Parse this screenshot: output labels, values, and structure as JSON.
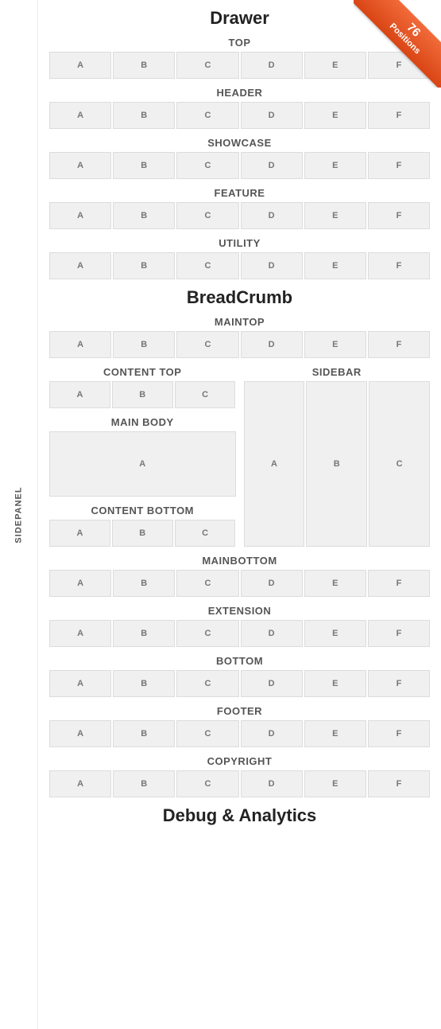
{
  "ribbon": {
    "number": "76",
    "label": "Positions"
  },
  "sidepanel": {
    "label": "SIDEPANEL"
  },
  "headings": {
    "drawer": "Drawer",
    "breadcrumb": "BreadCrumb",
    "debug": "Debug & Analytics"
  },
  "sections_top": [
    {
      "title": "TOP",
      "cells": [
        "A",
        "B",
        "C",
        "D",
        "E",
        "F"
      ]
    },
    {
      "title": "HEADER",
      "cells": [
        "A",
        "B",
        "C",
        "D",
        "E",
        "F"
      ]
    },
    {
      "title": "SHOWCASE",
      "cells": [
        "A",
        "B",
        "C",
        "D",
        "E",
        "F"
      ]
    },
    {
      "title": "FEATURE",
      "cells": [
        "A",
        "B",
        "C",
        "D",
        "E",
        "F"
      ]
    },
    {
      "title": "UTILITY",
      "cells": [
        "A",
        "B",
        "C",
        "D",
        "E",
        "F"
      ]
    }
  ],
  "maintop": {
    "title": "MAINTOP",
    "cells": [
      "A",
      "B",
      "C",
      "D",
      "E",
      "F"
    ]
  },
  "content_top": {
    "title": "CONTENT TOP",
    "cells": [
      "A",
      "B",
      "C"
    ]
  },
  "sidebar": {
    "title": "SIDEBAR",
    "cells": [
      "A",
      "B",
      "C"
    ]
  },
  "mainbody": {
    "title": "MAIN BODY",
    "cell": "A"
  },
  "content_bottom": {
    "title": "CONTENT BOTTOM",
    "cells": [
      "A",
      "B",
      "C"
    ]
  },
  "sections_bottom": [
    {
      "title": "MAINBOTTOM",
      "cells": [
        "A",
        "B",
        "C",
        "D",
        "E",
        "F"
      ]
    },
    {
      "title": "EXTENSION",
      "cells": [
        "A",
        "B",
        "C",
        "D",
        "E",
        "F"
      ]
    },
    {
      "title": "BOTTOM",
      "cells": [
        "A",
        "B",
        "C",
        "D",
        "E",
        "F"
      ]
    },
    {
      "title": "FOOTER",
      "cells": [
        "A",
        "B",
        "C",
        "D",
        "E",
        "F"
      ]
    },
    {
      "title": "COPYRIGHT",
      "cells": [
        "A",
        "B",
        "C",
        "D",
        "E",
        "F"
      ]
    }
  ],
  "style": {
    "cell_bg": "#f0f0f0",
    "cell_border": "#dcdcdc",
    "cell_text": "#777777",
    "heading_text": "#222222",
    "subheading_text": "#555555",
    "ribbon_gradient_top": "#f26b3a",
    "ribbon_gradient_bottom": "#d94515"
  }
}
